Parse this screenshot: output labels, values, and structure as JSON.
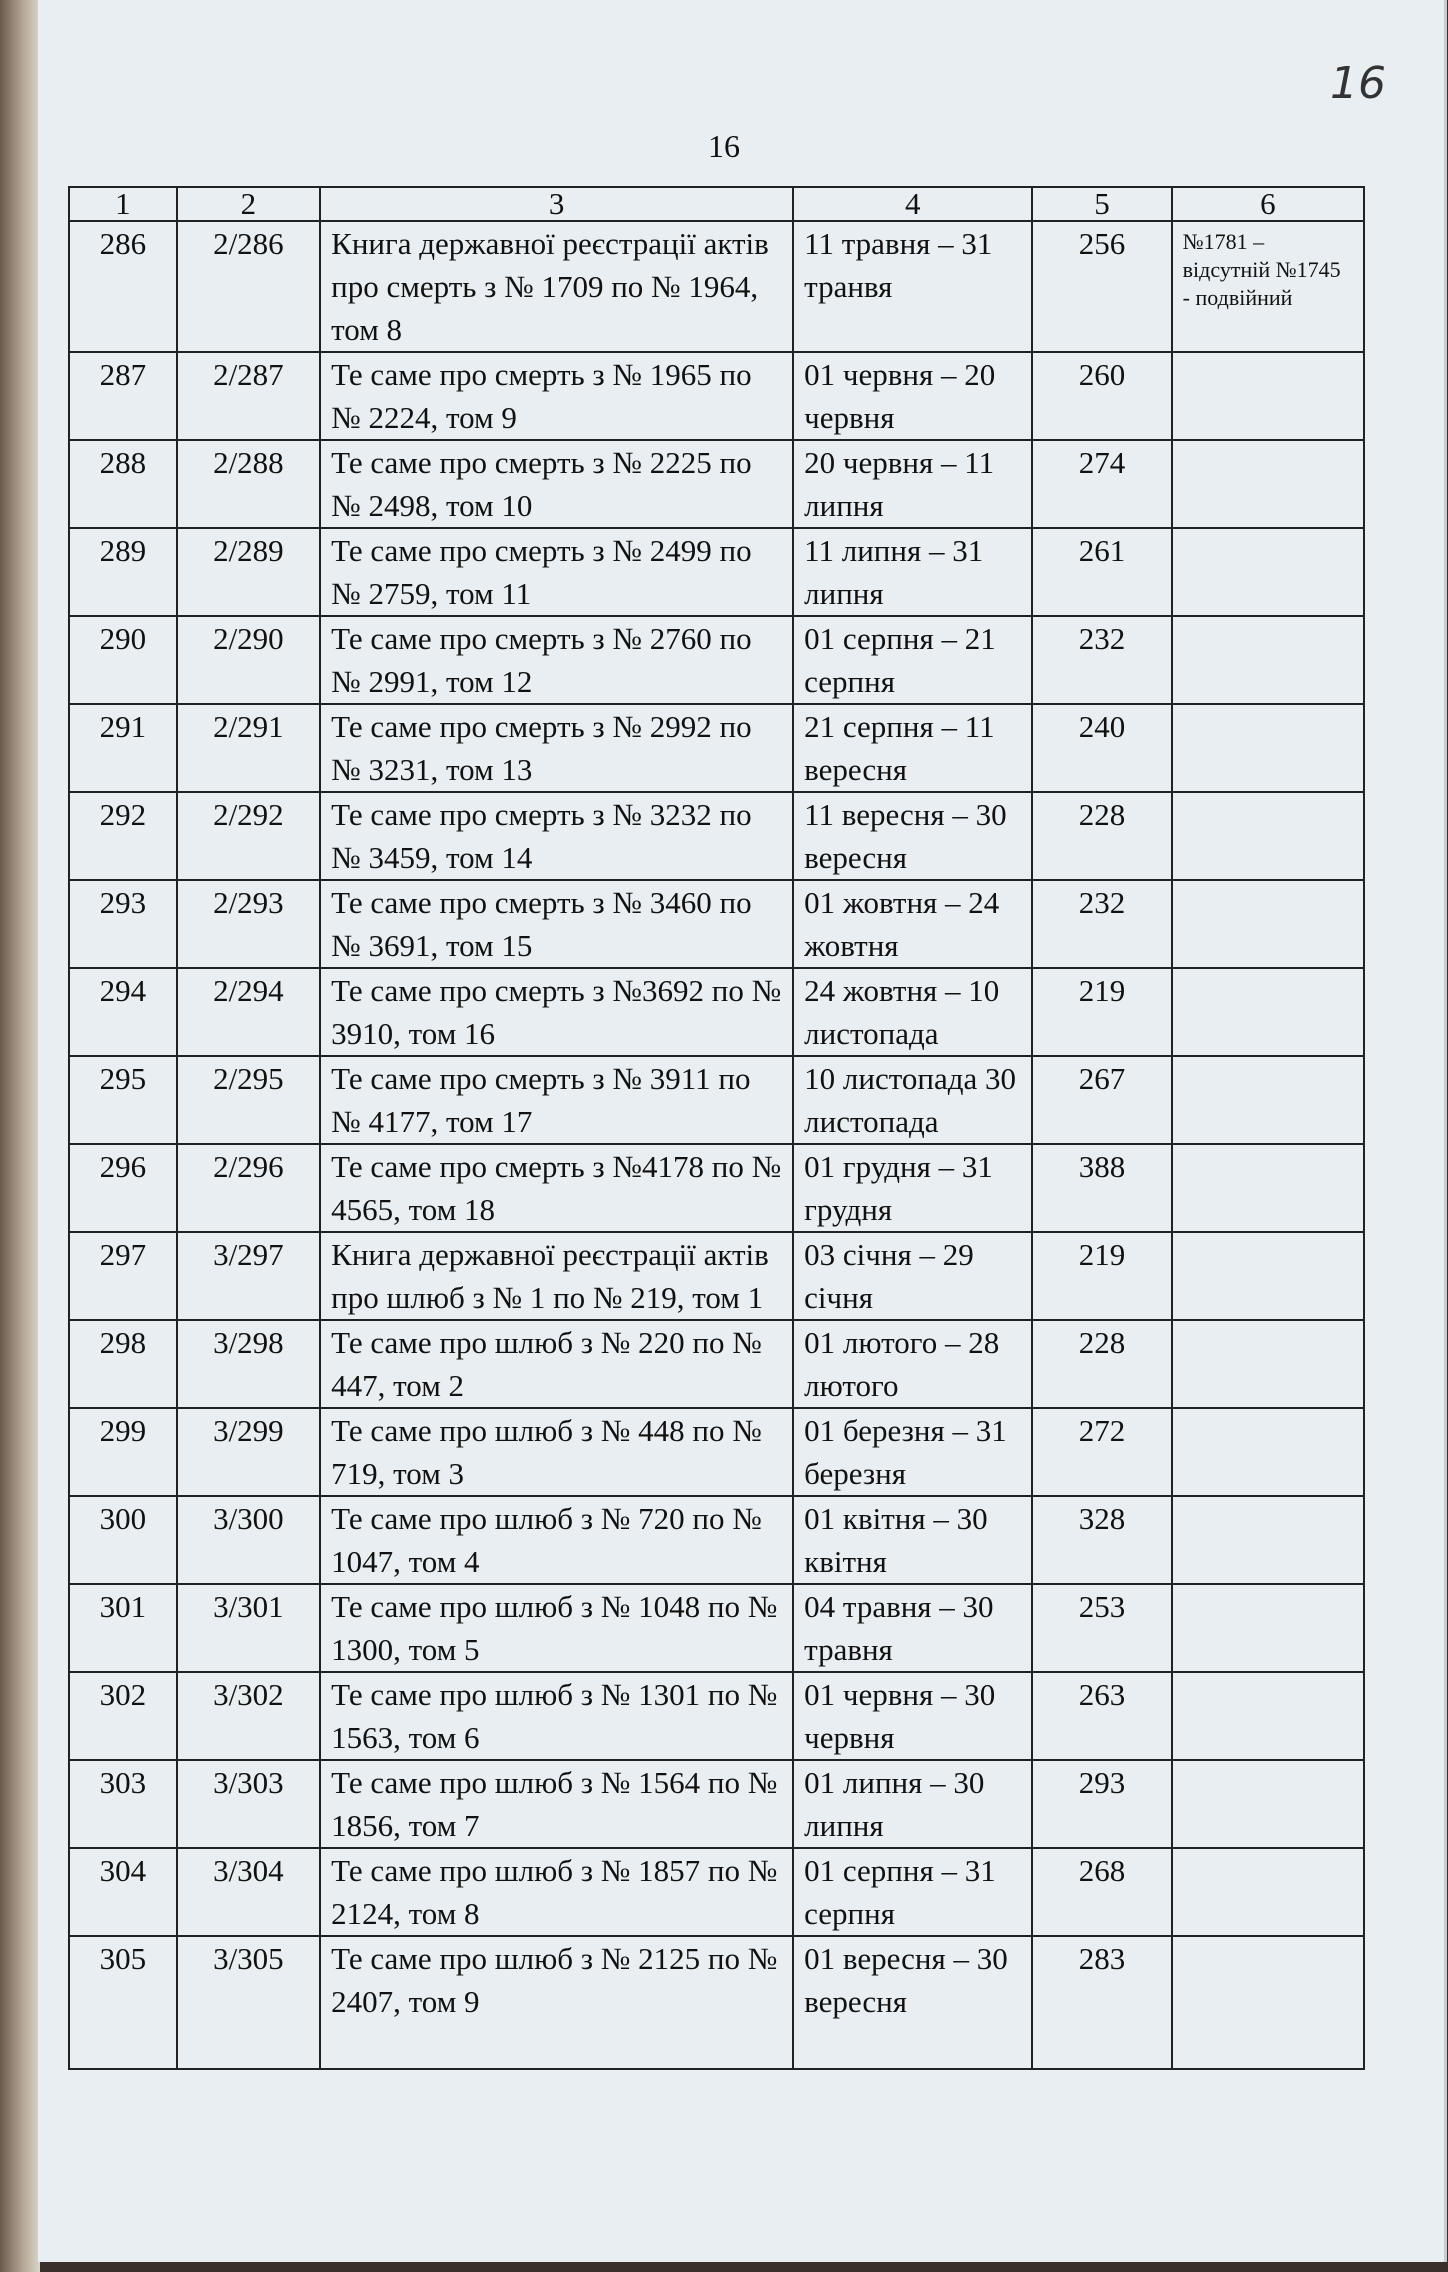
{
  "handwritten_folio": "16",
  "page_number": "16",
  "columns": [
    "1",
    "2",
    "3",
    "4",
    "5",
    "6"
  ],
  "rows": [
    {
      "n": "286",
      "code": "2/286",
      "title": "Книга державної реєстрації актів про смерть  з № 1709 по № 1964, том 8",
      "dates": "11 травня – 31 транвя",
      "count": "256",
      "note": "№1781 – відсутній №1745 - подвійний"
    },
    {
      "n": "287",
      "code": "2/287",
      "title": "Те саме про смерть з № 1965 по № 2224, том 9",
      "dates": "01 червня – 20 червня",
      "count": "260",
      "note": ""
    },
    {
      "n": "288",
      "code": "2/288",
      "title": "Те саме про смерть з № 2225 по № 2498, том 10",
      "dates": "20 червня – 11 липня",
      "count": "274",
      "note": ""
    },
    {
      "n": "289",
      "code": "2/289",
      "title": "Те саме про смерть з № 2499 по № 2759, том 11",
      "dates": "11 липня – 31 липня",
      "count": "261",
      "note": ""
    },
    {
      "n": "290",
      "code": "2/290",
      "title": "Те саме про смерть з № 2760 по № 2991, том 12",
      "dates": "01 серпня – 21 серпня",
      "count": "232",
      "note": ""
    },
    {
      "n": "291",
      "code": "2/291",
      "title": "Те саме про смерть з № 2992 по № 3231, том 13",
      "dates": "21 серпня – 11 вересня",
      "count": "240",
      "note": ""
    },
    {
      "n": "292",
      "code": "2/292",
      "title": "Те саме про смерть з № 3232 по № 3459, том 14",
      "dates": "11 вересня – 30 вересня",
      "count": "228",
      "note": ""
    },
    {
      "n": "293",
      "code": "2/293",
      "title": "Те саме про смерть з № 3460 по № 3691, том 15",
      "dates": "01 жовтня – 24 жовтня",
      "count": "232",
      "note": ""
    },
    {
      "n": "294",
      "code": "2/294",
      "title": "Те саме про смерть з №3692 по № 3910, том 16",
      "dates": "24 жовтня – 10 листопада",
      "count": "219",
      "note": ""
    },
    {
      "n": "295",
      "code": "2/295",
      "title": "Те саме про смерть з № 3911 по № 4177, том 17",
      "dates": "10 листопада 30 листопада",
      "count": "267",
      "note": ""
    },
    {
      "n": "296",
      "code": "2/296",
      "title": "Те саме про смерть з №4178 по № 4565, том 18",
      "dates": "01 грудня – 31 грудня",
      "count": "388",
      "note": ""
    },
    {
      "n": "297",
      "code": "3/297",
      "title": "Книга державної реєстрації актів про шлюб з № 1 по № 219, том 1",
      "dates": "03 січня – 29 січня",
      "count": "219",
      "note": ""
    },
    {
      "n": "298",
      "code": "3/298",
      "title": "Те саме про шлюб з № 220 по № 447, том 2",
      "dates": "01 лютого – 28 лютого",
      "count": "228",
      "note": ""
    },
    {
      "n": "299",
      "code": "3/299",
      "title": "Те саме про шлюб з № 448 по № 719, том 3",
      "dates": "01 березня – 31 березня",
      "count": "272",
      "note": ""
    },
    {
      "n": "300",
      "code": "3/300",
      "title": "Те саме про шлюб з № 720 по № 1047, том 4",
      "dates": "01 квітня – 30 квітня",
      "count": "328",
      "note": ""
    },
    {
      "n": "301",
      "code": "3/301",
      "title": "Те саме про шлюб з № 1048 по № 1300, том 5",
      "dates": "04 травня – 30 травня",
      "count": "253",
      "note": ""
    },
    {
      "n": "302",
      "code": "3/302",
      "title": "Те саме про шлюб з № 1301 по № 1563, том 6",
      "dates": "01 червня – 30 червня",
      "count": "263",
      "note": ""
    },
    {
      "n": "303",
      "code": "3/303",
      "title": "Те саме про шлюб з № 1564 по № 1856, том 7",
      "dates": "01 липня – 30 липня",
      "count": "293",
      "note": ""
    },
    {
      "n": "304",
      "code": "3/304",
      "title": "Те саме про шлюб з № 1857 по № 2124, том 8",
      "dates": "01 серпня – 31 серпня",
      "count": "268",
      "note": ""
    },
    {
      "n": "305",
      "code": "3/305",
      "title": "Те саме про шлюб з № 2125 по № 2407, том 9",
      "dates": "01 вересня – 30 вересня",
      "count": "283",
      "note": ""
    }
  ]
}
